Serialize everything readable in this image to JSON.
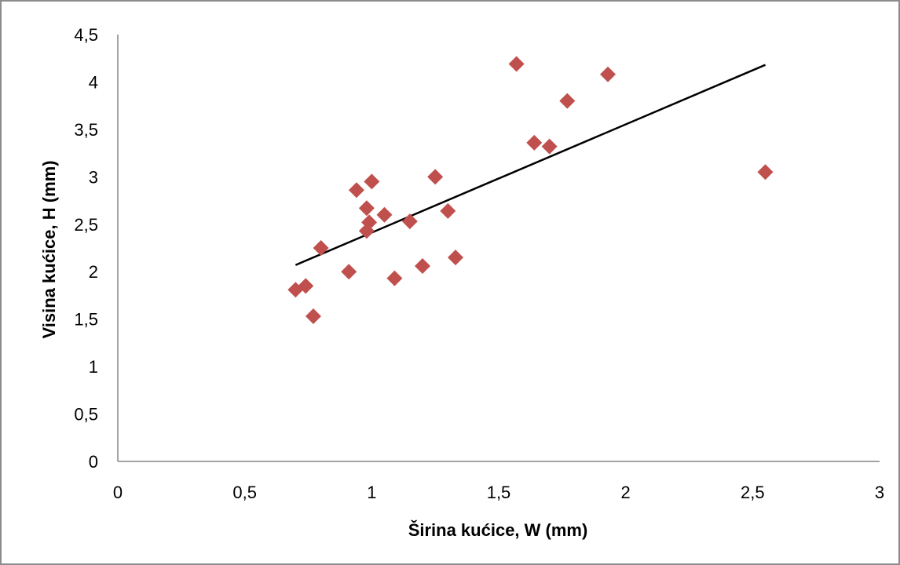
{
  "chart_data": {
    "type": "scatter",
    "title": "",
    "xlabel": "Širina kućice, W (mm)",
    "ylabel": "Visina kućice, H (mm)",
    "xlim": [
      0,
      3
    ],
    "ylim": [
      0,
      4.5
    ],
    "x_ticks": [
      "0",
      "0,5",
      "1",
      "1,5",
      "2",
      "2,5",
      "3"
    ],
    "y_ticks": [
      "0",
      "0,5",
      "1",
      "1,5",
      "2",
      "2,5",
      "3",
      "3,5",
      "4",
      "4,5"
    ],
    "grid": false,
    "legend": "none",
    "marker_color": "#c0504d",
    "trendline_color": "#000000",
    "points": [
      {
        "x": 0.7,
        "y": 1.81
      },
      {
        "x": 0.74,
        "y": 1.85
      },
      {
        "x": 0.77,
        "y": 1.53
      },
      {
        "x": 0.8,
        "y": 2.25
      },
      {
        "x": 0.91,
        "y": 2.0
      },
      {
        "x": 0.94,
        "y": 2.86
      },
      {
        "x": 0.98,
        "y": 2.67
      },
      {
        "x": 0.98,
        "y": 2.43
      },
      {
        "x": 0.99,
        "y": 2.52
      },
      {
        "x": 1.0,
        "y": 2.95
      },
      {
        "x": 1.05,
        "y": 2.6
      },
      {
        "x": 1.09,
        "y": 1.93
      },
      {
        "x": 1.15,
        "y": 2.53
      },
      {
        "x": 1.2,
        "y": 2.06
      },
      {
        "x": 1.25,
        "y": 3.0
      },
      {
        "x": 1.3,
        "y": 2.64
      },
      {
        "x": 1.33,
        "y": 2.15
      },
      {
        "x": 1.57,
        "y": 4.19
      },
      {
        "x": 1.64,
        "y": 3.36
      },
      {
        "x": 1.7,
        "y": 3.32
      },
      {
        "x": 1.77,
        "y": 3.8
      },
      {
        "x": 1.93,
        "y": 4.08
      },
      {
        "x": 2.55,
        "y": 3.05
      }
    ],
    "trendline": {
      "x": [
        0.7,
        2.55
      ],
      "y": [
        2.07,
        4.18
      ]
    }
  }
}
